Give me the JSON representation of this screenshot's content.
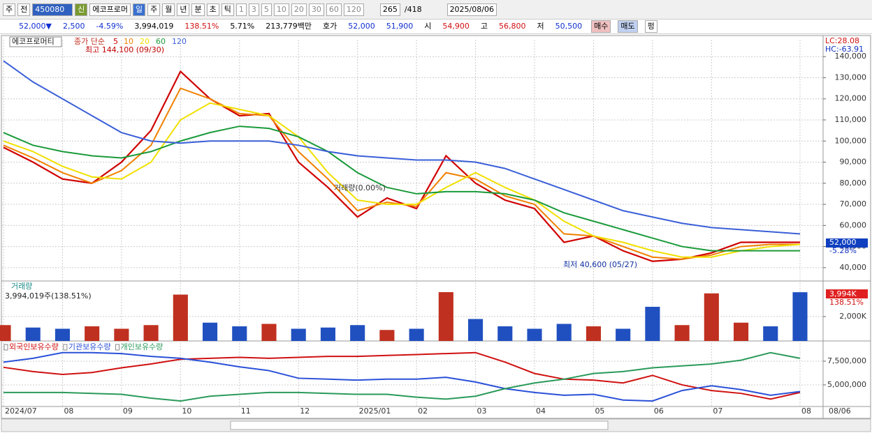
{
  "toolbar": [
    "주",
    "전",
    "450080",
    "에코프로머",
    "신",
    "일",
    "주",
    "월",
    "년",
    "분",
    "초",
    "틱",
    "1",
    "3",
    "5",
    "10",
    "20",
    "30",
    "60",
    "120",
    "265",
    "/418",
    "2025/08/06"
  ],
  "info": [
    "52,000▼",
    "2,500",
    "-4.59%",
    "3,994,019",
    "138.51%",
    "5.71%",
    "213,779백만",
    "호가",
    "52,000",
    "51,900",
    "시",
    "54,900",
    "고",
    "56,800",
    "저",
    "50,500",
    "매수",
    "매도",
    "펑"
  ],
  "chart_data": [
    {
      "type": "line",
      "title": "에코프로머티",
      "legend_title": "종가 단순",
      "categories": [
        "2024/07",
        null,
        "08",
        null,
        "09",
        null,
        "10",
        null,
        "11",
        null,
        "12",
        null,
        "2025/01",
        null,
        "02",
        null,
        "03",
        null,
        "04",
        null,
        "05",
        null,
        "06",
        null,
        "07",
        null,
        null,
        "08"
      ],
      "cursor_date": "08/06",
      "series": [
        {
          "name": "5",
          "color": "#d00000",
          "values": [
            97000,
            90000,
            82000,
            80000,
            90000,
            105000,
            133000,
            120000,
            112000,
            113000,
            90000,
            78000,
            64000,
            73000,
            68000,
            93000,
            80000,
            72000,
            68000,
            52000,
            55000,
            48000,
            43000,
            44000,
            47000,
            52000,
            52000,
            52000
          ]
        },
        {
          "name": "10",
          "color": "#f08000",
          "values": [
            98000,
            92000,
            85000,
            80000,
            86000,
            98000,
            125000,
            120000,
            113000,
            112000,
            95000,
            82000,
            67000,
            71000,
            69000,
            85000,
            82000,
            74000,
            70000,
            56000,
            55000,
            50000,
            45000,
            44000,
            46000,
            50000,
            51000,
            51000
          ]
        },
        {
          "name": "20",
          "color": "#f0e000",
          "values": [
            100000,
            95000,
            88000,
            83000,
            82000,
            90000,
            110000,
            118000,
            115000,
            112000,
            102000,
            85000,
            72000,
            70000,
            70000,
            78000,
            85000,
            78000,
            72000,
            62000,
            55000,
            52000,
            48000,
            45000,
            45000,
            48000,
            50000,
            51000
          ]
        },
        {
          "name": "60",
          "color": "#1a9a3a",
          "values": [
            104000,
            98000,
            95000,
            93000,
            92000,
            95000,
            100000,
            104000,
            107000,
            106000,
            102000,
            95000,
            85000,
            78000,
            75000,
            76000,
            76000,
            75000,
            72000,
            66000,
            62000,
            58000,
            54000,
            50000,
            48000,
            48000,
            48000,
            48000
          ]
        },
        {
          "name": "120",
          "color": "#3a5fd8",
          "values": [
            138000,
            128000,
            120000,
            112000,
            104000,
            100000,
            99000,
            100000,
            100000,
            100000,
            98000,
            95000,
            93000,
            92000,
            91000,
            91000,
            90000,
            87000,
            82000,
            77000,
            72000,
            67000,
            64000,
            61000,
            59000,
            58000,
            57000,
            56000
          ]
        }
      ],
      "ylim": [
        34000,
        148000
      ],
      "yticks": [
        {
          "value": 40000,
          "label": "40,000"
        },
        {
          "value": 50000,
          "label": "50,000"
        },
        {
          "value": 60000,
          "label": "60,000"
        },
        {
          "value": 70000,
          "label": "70,000"
        },
        {
          "value": 80000,
          "label": "80,000"
        },
        {
          "value": 90000,
          "label": "90,000"
        },
        {
          "value": 100000,
          "label": "100,000"
        },
        {
          "value": 110000,
          "label": "110,000"
        },
        {
          "value": 120000,
          "label": "120,000"
        },
        {
          "value": 130000,
          "label": "130,000"
        },
        {
          "value": 140000,
          "label": "140,000"
        }
      ],
      "grid": true,
      "annotations": [
        "최고 144,100 (09/30)",
        "최저 40,600 (05/27)",
        "LC:28.08",
        "HC:-63.91",
        "52,000",
        "-5.28%",
        "거래량(0.00%)"
      ]
    },
    {
      "type": "bar",
      "title": "거래량",
      "subtitle": "3,994,019주(138.51%)",
      "values": [
        1300000,
        1100000,
        1000000,
        1200000,
        1000000,
        1300000,
        3800000,
        1500000,
        1200000,
        1400000,
        1000000,
        1100000,
        1300000,
        900000,
        1000000,
        4000000,
        1800000,
        1200000,
        1000000,
        1400000,
        1200000,
        1000000,
        2800000,
        1300000,
        3900000,
        1500000,
        1200000,
        3994019
      ],
      "colors": [
        "#c03020",
        "#2050c0",
        "#2050c0",
        "#c03020",
        "#c03020",
        "#c03020",
        "#c03020",
        "#2050c0",
        "#2050c0",
        "#c03020",
        "#2050c0",
        "#2050c0",
        "#2050c0",
        "#c03020",
        "#2050c0",
        "#c03020",
        "#2050c0",
        "#2050c0",
        "#2050c0",
        "#2050c0",
        "#c03020",
        "#2050c0",
        "#2050c0",
        "#c03020",
        "#c03020",
        "#c03020",
        "#2050c0",
        "#2050c0"
      ],
      "ylim": [
        0,
        4800000
      ],
      "yticks": [
        {
          "value": 2000000,
          "label": "2,000K"
        }
      ],
      "grid": true,
      "annotations": [
        "3,994K",
        "138.51%"
      ]
    },
    {
      "type": "line",
      "series": [
        {
          "name": "외국인보유수량",
          "color": "#d01010",
          "values": [
            6850000,
            6400000,
            6100000,
            6300000,
            6800000,
            7200000,
            7700000,
            7800000,
            7900000,
            7800000,
            7900000,
            8000000,
            8000000,
            8100000,
            8200000,
            8300000,
            8400000,
            7400000,
            6200000,
            5600000,
            5500000,
            5200000,
            6000000,
            5000000,
            4400000,
            4100000,
            3500000,
            4200000
          ]
        },
        {
          "name": "기관보유수량",
          "color": "#2a50d8",
          "values": [
            7400000,
            7800000,
            8400000,
            8400000,
            8300000,
            8000000,
            7800000,
            7400000,
            6900000,
            6500000,
            5700000,
            5600000,
            5500000,
            5600000,
            5600000,
            5800000,
            5300000,
            4600000,
            4200000,
            3900000,
            4000000,
            3400000,
            3300000,
            4400000,
            4900000,
            4500000,
            3900000,
            4300000
          ]
        },
        {
          "name": "개인보유수량",
          "color": "#2a9a5a",
          "values": [
            4200000,
            4200000,
            4200000,
            4100000,
            4000000,
            3600000,
            3300000,
            3800000,
            4000000,
            4200000,
            4200000,
            4100000,
            4000000,
            4000000,
            3700000,
            3500000,
            3800000,
            4600000,
            5200000,
            5600000,
            6200000,
            6400000,
            6800000,
            7000000,
            7200000,
            7600000,
            8400000,
            7800000
          ]
        }
      ],
      "ylim": [
        2790000,
        9410000
      ],
      "yticks": [
        {
          "value": 5000000,
          "label": "5,000,000"
        },
        {
          "value": 7500000,
          "label": "7,500,000"
        }
      ],
      "grid": true
    }
  ]
}
